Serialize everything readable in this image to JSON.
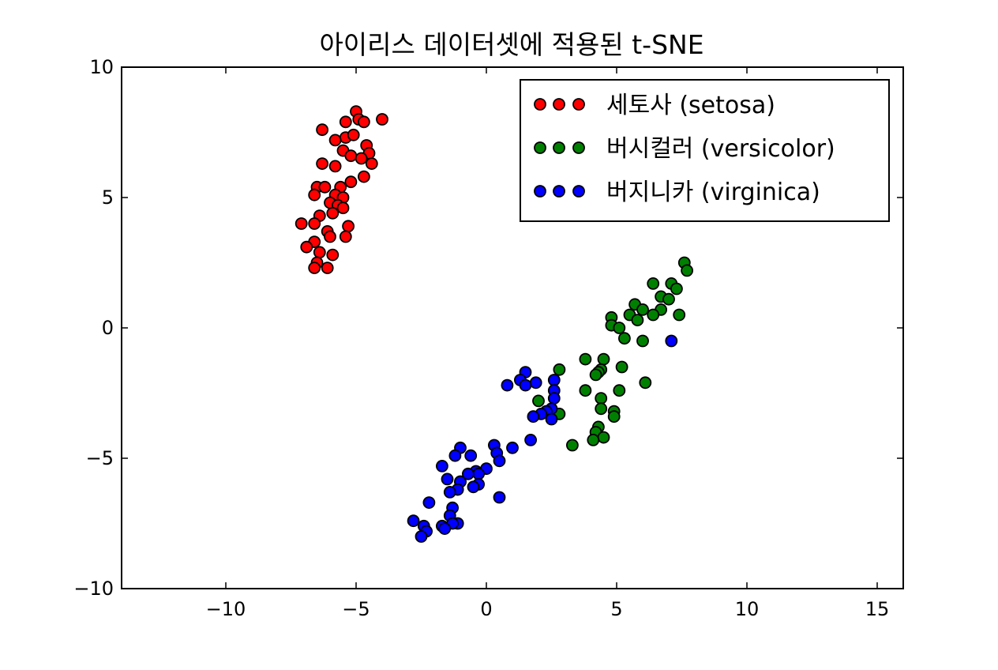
{
  "chart_data": {
    "type": "scatter",
    "title": "아이리스 데이터셋에 적용된 t-SNE",
    "xlabel": "",
    "ylabel": "",
    "xlim": [
      -14,
      16
    ],
    "ylim": [
      -10,
      10
    ],
    "xticks": [
      -10,
      -5,
      0,
      5,
      10,
      15
    ],
    "yticks": [
      -10,
      -5,
      0,
      5,
      10
    ],
    "xtick_labels": [
      "−10",
      "−5",
      "0",
      "5",
      "10",
      "15"
    ],
    "ytick_labels": [
      "−10",
      "−5",
      "0",
      "5",
      "10"
    ],
    "grid": false,
    "legend_position": "top-right",
    "series": [
      {
        "name": "세토사 (setosa)",
        "color": "#ff0000",
        "points": [
          [
            -5.0,
            8.3
          ],
          [
            -4.9,
            8.0
          ],
          [
            -4.7,
            7.9
          ],
          [
            -5.4,
            7.9
          ],
          [
            -4.0,
            8.0
          ],
          [
            -6.3,
            7.6
          ],
          [
            -5.4,
            7.3
          ],
          [
            -5.1,
            7.4
          ],
          [
            -5.8,
            7.2
          ],
          [
            -4.6,
            7.0
          ],
          [
            -5.5,
            6.8
          ],
          [
            -4.5,
            6.7
          ],
          [
            -5.2,
            6.6
          ],
          [
            -4.8,
            6.5
          ],
          [
            -4.4,
            6.3
          ],
          [
            -6.3,
            6.3
          ],
          [
            -5.8,
            6.2
          ],
          [
            -4.7,
            5.8
          ],
          [
            -5.2,
            5.6
          ],
          [
            -6.5,
            5.4
          ],
          [
            -6.2,
            5.4
          ],
          [
            -5.6,
            5.4
          ],
          [
            -6.6,
            5.1
          ],
          [
            -5.8,
            5.1
          ],
          [
            -5.5,
            5.0
          ],
          [
            -6.0,
            4.8
          ],
          [
            -5.7,
            4.7
          ],
          [
            -5.5,
            4.6
          ],
          [
            -5.9,
            4.4
          ],
          [
            -6.4,
            4.3
          ],
          [
            -7.1,
            4.0
          ],
          [
            -6.6,
            4.0
          ],
          [
            -5.3,
            3.9
          ],
          [
            -6.1,
            3.7
          ],
          [
            -6.0,
            3.5
          ],
          [
            -5.4,
            3.5
          ],
          [
            -6.6,
            3.3
          ],
          [
            -6.9,
            3.1
          ],
          [
            -6.4,
            2.9
          ],
          [
            -5.9,
            2.8
          ],
          [
            -6.5,
            2.5
          ],
          [
            -6.1,
            2.3
          ],
          [
            -6.6,
            2.3
          ]
        ]
      },
      {
        "name": "버시컬러 (versicolor)",
        "color": "#008000",
        "points": [
          [
            7.6,
            2.5
          ],
          [
            7.7,
            2.2
          ],
          [
            6.4,
            1.7
          ],
          [
            7.1,
            1.7
          ],
          [
            7.3,
            1.5
          ],
          [
            6.7,
            1.2
          ],
          [
            7.0,
            1.1
          ],
          [
            5.7,
            0.9
          ],
          [
            6.0,
            0.7
          ],
          [
            6.7,
            0.7
          ],
          [
            5.5,
            0.5
          ],
          [
            6.4,
            0.5
          ],
          [
            7.4,
            0.5
          ],
          [
            4.8,
            0.4
          ],
          [
            5.8,
            0.3
          ],
          [
            4.8,
            0.1
          ],
          [
            5.1,
            0.0
          ],
          [
            5.3,
            -0.4
          ],
          [
            6.0,
            -0.5
          ],
          [
            3.8,
            -1.2
          ],
          [
            4.5,
            -1.2
          ],
          [
            2.8,
            -1.6
          ],
          [
            4.4,
            -1.6
          ],
          [
            5.2,
            -1.5
          ],
          [
            4.3,
            -1.7
          ],
          [
            4.2,
            -1.8
          ],
          [
            6.1,
            -2.1
          ],
          [
            3.8,
            -2.4
          ],
          [
            5.1,
            -2.4
          ],
          [
            4.4,
            -2.7
          ],
          [
            2.0,
            -2.8
          ],
          [
            4.4,
            -3.1
          ],
          [
            4.9,
            -3.2
          ],
          [
            2.8,
            -3.3
          ],
          [
            4.9,
            -3.4
          ],
          [
            4.3,
            -3.8
          ],
          [
            4.2,
            -4.0
          ],
          [
            4.5,
            -4.2
          ],
          [
            4.1,
            -4.3
          ],
          [
            3.3,
            -4.5
          ]
        ]
      },
      {
        "name": "버지니카 (virginica)",
        "color": "#0000ff",
        "points": [
          [
            7.1,
            -0.5
          ],
          [
            1.5,
            -1.7
          ],
          [
            1.3,
            -2.0
          ],
          [
            2.6,
            -2.0
          ],
          [
            1.9,
            -2.1
          ],
          [
            1.5,
            -2.2
          ],
          [
            0.8,
            -2.2
          ],
          [
            2.6,
            -2.4
          ],
          [
            2.6,
            -2.7
          ],
          [
            2.5,
            -3.1
          ],
          [
            2.3,
            -3.2
          ],
          [
            2.1,
            -3.3
          ],
          [
            1.8,
            -3.4
          ],
          [
            2.5,
            -3.5
          ],
          [
            1.7,
            -4.3
          ],
          [
            1.0,
            -4.6
          ],
          [
            0.3,
            -4.5
          ],
          [
            -1.0,
            -4.6
          ],
          [
            -0.6,
            -4.9
          ],
          [
            0.4,
            -4.8
          ],
          [
            -1.2,
            -4.9
          ],
          [
            0.5,
            -5.1
          ],
          [
            -1.7,
            -5.3
          ],
          [
            0.0,
            -5.4
          ],
          [
            -0.4,
            -5.5
          ],
          [
            -0.3,
            -5.6
          ],
          [
            -0.7,
            -5.6
          ],
          [
            -1.0,
            -5.9
          ],
          [
            -1.5,
            -5.8
          ],
          [
            -1.0,
            -5.9
          ],
          [
            -0.3,
            -6.0
          ],
          [
            -0.5,
            -6.1
          ],
          [
            -1.1,
            -6.2
          ],
          [
            -1.4,
            -6.3
          ],
          [
            0.5,
            -6.5
          ],
          [
            -2.2,
            -6.7
          ],
          [
            -1.3,
            -6.9
          ],
          [
            -1.4,
            -7.2
          ],
          [
            -1.1,
            -7.5
          ],
          [
            -1.3,
            -7.5
          ],
          [
            -2.8,
            -7.4
          ],
          [
            -2.4,
            -7.6
          ],
          [
            -1.7,
            -7.6
          ],
          [
            -1.6,
            -7.7
          ],
          [
            -2.3,
            -7.8
          ],
          [
            -2.5,
            -8.0
          ]
        ]
      }
    ]
  }
}
